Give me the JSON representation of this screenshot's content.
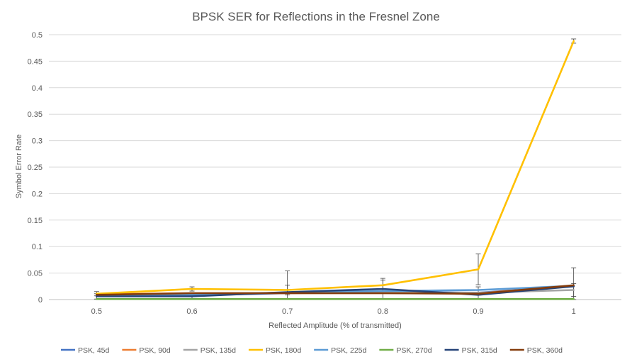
{
  "chart_data": {
    "type": "line",
    "title": "BPSK SER for Reflections in the Fresnel Zone",
    "xlabel": "Reflected Amplitude (% of transmitted)",
    "ylabel": "Symbol Error Rate",
    "x": [
      0.5,
      0.6,
      0.7,
      0.8,
      0.9,
      1
    ],
    "x_tick_labels": [
      "0.5",
      "0.6",
      "0.7",
      "0.8",
      "0.9",
      "1"
    ],
    "ylim": [
      0,
      0.5
    ],
    "y_ticks": [
      0,
      0.05,
      0.1,
      0.15,
      0.2,
      0.25,
      0.3,
      0.35,
      0.4,
      0.45,
      0.5
    ],
    "y_tick_labels": [
      "0",
      "0.05",
      "0.1",
      "0.15",
      "0.2",
      "0.25",
      "0.3",
      "0.35",
      "0.4",
      "0.45",
      "0.5"
    ],
    "grid": "horizontal",
    "legend_position": "bottom",
    "series": [
      {
        "name": "PSK, 45d",
        "color": "#4472C4",
        "values": [
          0.007,
          0.008,
          0.012,
          0.014,
          0.013,
          0.025
        ],
        "errors": [
          0,
          0,
          0,
          0,
          0,
          0
        ]
      },
      {
        "name": "PSK, 90d",
        "color": "#ED7D31",
        "values": [
          0.01,
          0.012,
          0.012,
          0.012,
          0.012,
          0.026
        ],
        "errors": [
          0,
          0,
          0,
          0,
          0,
          0
        ]
      },
      {
        "name": "PSK, 135d",
        "color": "#A5A5A5",
        "values": [
          0.009,
          0.011,
          0.013,
          0.013,
          0.013,
          0.018
        ],
        "errors": [
          0,
          0,
          0,
          0,
          0,
          0.012
        ]
      },
      {
        "name": "PSK, 180d",
        "color": "#FFC000",
        "values": [
          0.011,
          0.02,
          0.018,
          0.027,
          0.057,
          0.488
        ],
        "errors": [
          0.004,
          0.004,
          0.009,
          0.01,
          0.029,
          0.004
        ]
      },
      {
        "name": "PSK, 225d",
        "color": "#5B9BD5",
        "values": [
          0.008,
          0.01,
          0.013,
          0.016,
          0.018,
          0.026
        ],
        "errors": [
          0,
          0,
          0,
          0,
          0,
          0
        ]
      },
      {
        "name": "PSK, 270d",
        "color": "#70AD47",
        "values": [
          0.001,
          0.001,
          0.001,
          0.001,
          0.001,
          0.001
        ],
        "errors": [
          0,
          0,
          0,
          0,
          0,
          0
        ]
      },
      {
        "name": "PSK, 315d",
        "color": "#264478",
        "values": [
          0.006,
          0.006,
          0.014,
          0.02,
          0.009,
          0.025
        ],
        "errors": [
          0.005,
          0.004,
          0.04,
          0.02,
          0.015,
          0.035
        ]
      },
      {
        "name": "PSK, 360d",
        "color": "#843C0C",
        "values": [
          0.009,
          0.012,
          0.012,
          0.012,
          0.011,
          0.027
        ],
        "errors": [
          0,
          0,
          0,
          0,
          0,
          0
        ]
      }
    ]
  }
}
